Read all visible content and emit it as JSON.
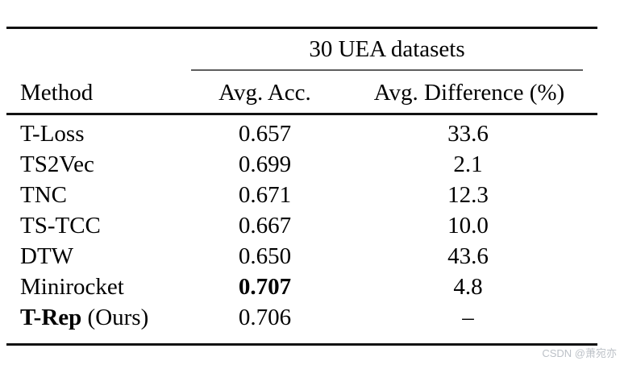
{
  "table": {
    "group_header": "30 UEA datasets",
    "columns": {
      "method": "Method",
      "acc": "Avg. Acc.",
      "diff": "Avg. Difference (%)"
    },
    "rows": [
      {
        "method_bold": "",
        "method": "T-Loss",
        "acc_bold": "",
        "acc": "0.657",
        "diff": "33.6"
      },
      {
        "method_bold": "",
        "method": "TS2Vec",
        "acc_bold": "",
        "acc": "0.699",
        "diff": "2.1"
      },
      {
        "method_bold": "",
        "method": "TNC",
        "acc_bold": "",
        "acc": "0.671",
        "diff": "12.3"
      },
      {
        "method_bold": "",
        "method": "TS-TCC",
        "acc_bold": "",
        "acc": "0.667",
        "diff": "10.0"
      },
      {
        "method_bold": "",
        "method": "DTW",
        "acc_bold": "",
        "acc": "0.650",
        "diff": "43.6"
      },
      {
        "method_bold": "",
        "method": "Minirocket",
        "acc_bold": "0.707",
        "acc": "",
        "diff": "4.8"
      },
      {
        "method_bold": "T-Rep",
        "method": " (Ours)",
        "acc_bold": "",
        "acc": "0.706",
        "diff": "–"
      }
    ],
    "colors": {
      "rule": "#111111",
      "midrule": "#5e5e5e",
      "text": "#000000"
    }
  },
  "watermark": {
    "text": "CSDN @萧宛亦",
    "color": "#bcc1c7"
  }
}
